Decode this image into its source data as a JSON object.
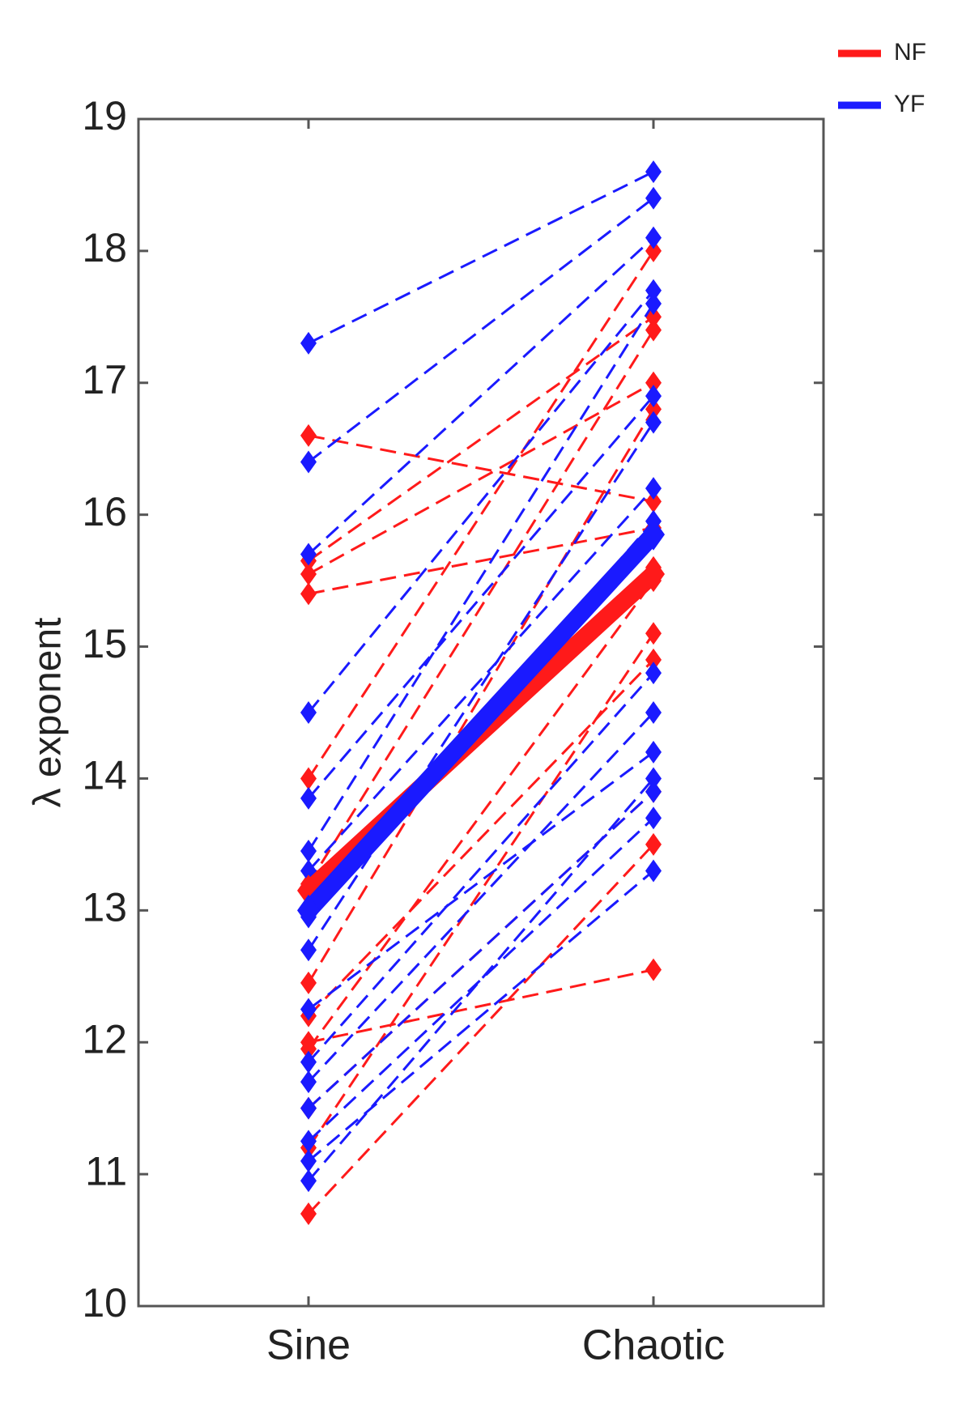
{
  "chart_data": {
    "type": "slope",
    "ylabel": "λ exponent",
    "categories": [
      "Sine",
      "Chaotic"
    ],
    "ylim": [
      10,
      19
    ],
    "yticks": [
      10,
      11,
      12,
      13,
      14,
      15,
      16,
      17,
      18,
      19
    ],
    "legend": "upper right",
    "series": [
      {
        "name": "NF",
        "color": "#ff1a1a",
        "values": [
          13.15,
          15.55
        ],
        "individuals": [
          [
            16.6,
            16.1
          ],
          [
            15.65,
            17.5
          ],
          [
            15.55,
            17.0
          ],
          [
            15.4,
            15.9
          ],
          [
            14.0,
            18.0
          ],
          [
            13.2,
            17.4
          ],
          [
            13.0,
            15.6
          ],
          [
            12.45,
            16.8
          ],
          [
            12.2,
            14.9
          ],
          [
            12.0,
            12.55
          ],
          [
            11.95,
            15.5
          ],
          [
            11.5,
            13.9
          ],
          [
            11.2,
            15.1
          ],
          [
            10.7,
            13.5
          ]
        ]
      },
      {
        "name": "YF",
        "color": "#1a1aff",
        "values": [
          13.0,
          15.85
        ],
        "individuals": [
          [
            17.3,
            18.6
          ],
          [
            16.4,
            18.4
          ],
          [
            15.7,
            18.1
          ],
          [
            14.5,
            17.7
          ],
          [
            13.85,
            16.9
          ],
          [
            13.45,
            17.6
          ],
          [
            13.3,
            16.2
          ],
          [
            12.95,
            15.95
          ],
          [
            12.7,
            16.7
          ],
          [
            12.25,
            14.2
          ],
          [
            11.85,
            14.8
          ],
          [
            11.7,
            14.5
          ],
          [
            11.5,
            13.9
          ],
          [
            11.25,
            13.7
          ],
          [
            11.1,
            13.3
          ],
          [
            10.95,
            14.0
          ]
        ]
      }
    ]
  }
}
